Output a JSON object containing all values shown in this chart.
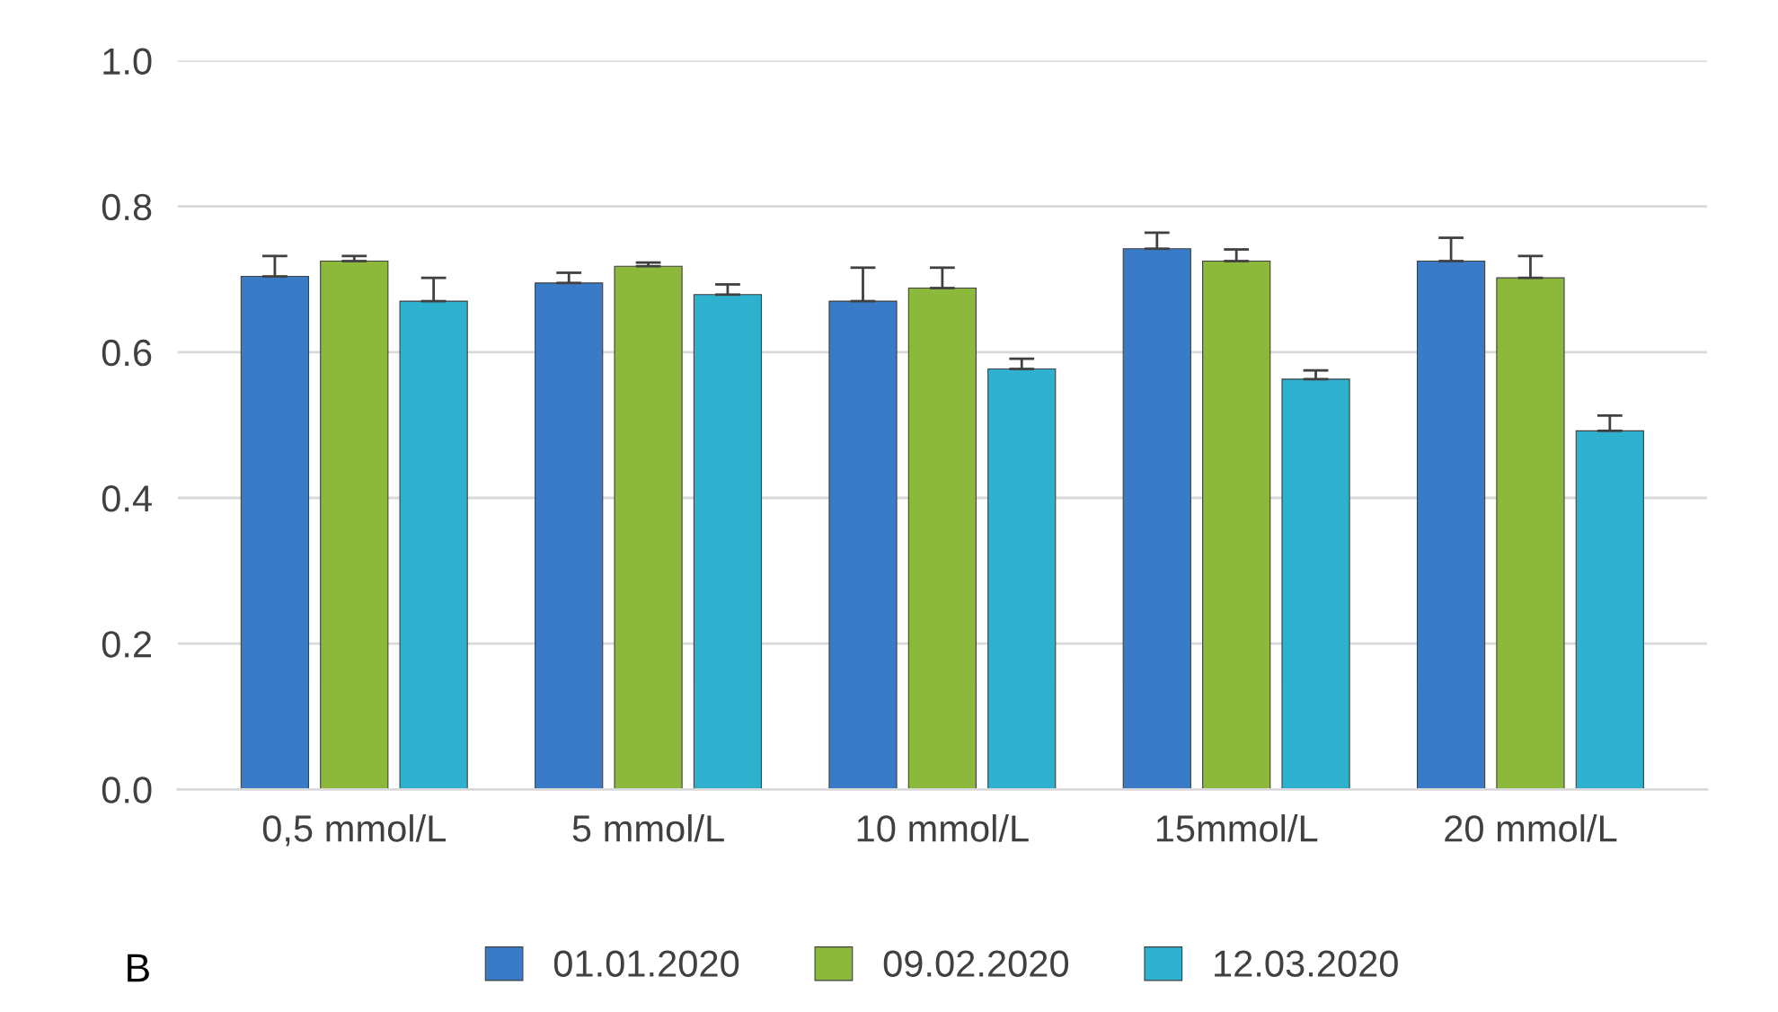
{
  "chart_data": {
    "type": "bar",
    "categories": [
      "0,5 mmol/L",
      "5 mmol/L",
      "10 mmol/L",
      "15mmol/L",
      "20 mmol/L"
    ],
    "series": [
      {
        "name": "01.01.2020",
        "color": "#3a7bc8",
        "values": [
          0.704,
          0.695,
          0.67,
          0.742,
          0.725
        ],
        "errors": [
          [
            0.704,
            0.732
          ],
          [
            0.695,
            0.709
          ],
          [
            0.67,
            0.716
          ],
          [
            0.742,
            0.764
          ],
          [
            0.725,
            0.757
          ]
        ]
      },
      {
        "name": "09.02.2020",
        "color": "#8cb83c",
        "values": [
          0.725,
          0.718,
          0.688,
          0.725,
          0.702
        ],
        "errors": [
          [
            0.725,
            0.732
          ],
          [
            0.718,
            0.723
          ],
          [
            0.688,
            0.716
          ],
          [
            0.725,
            0.741
          ],
          [
            0.702,
            0.732
          ]
        ]
      },
      {
        "name": "12.03.2020",
        "color": "#2eb0cf",
        "values": [
          0.67,
          0.679,
          0.577,
          0.563,
          0.492
        ],
        "errors": [
          [
            0.67,
            0.702
          ],
          [
            0.679,
            0.693
          ],
          [
            0.577,
            0.591
          ],
          [
            0.563,
            0.575
          ],
          [
            0.492,
            0.513
          ]
        ]
      }
    ],
    "ylim": [
      0,
      1
    ],
    "yticks": [
      {
        "value": 0,
        "label": "0.0"
      },
      {
        "value": 0.2,
        "label": "0.2"
      },
      {
        "value": 0.4,
        "label": "0.4"
      },
      {
        "value": 0.6,
        "label": "0.6"
      },
      {
        "value": 0.8,
        "label": "0.8"
      },
      {
        "value": 1,
        "label": "1.0"
      }
    ],
    "grid": "y",
    "legend": "bottom",
    "annotations": [
      "B"
    ]
  }
}
